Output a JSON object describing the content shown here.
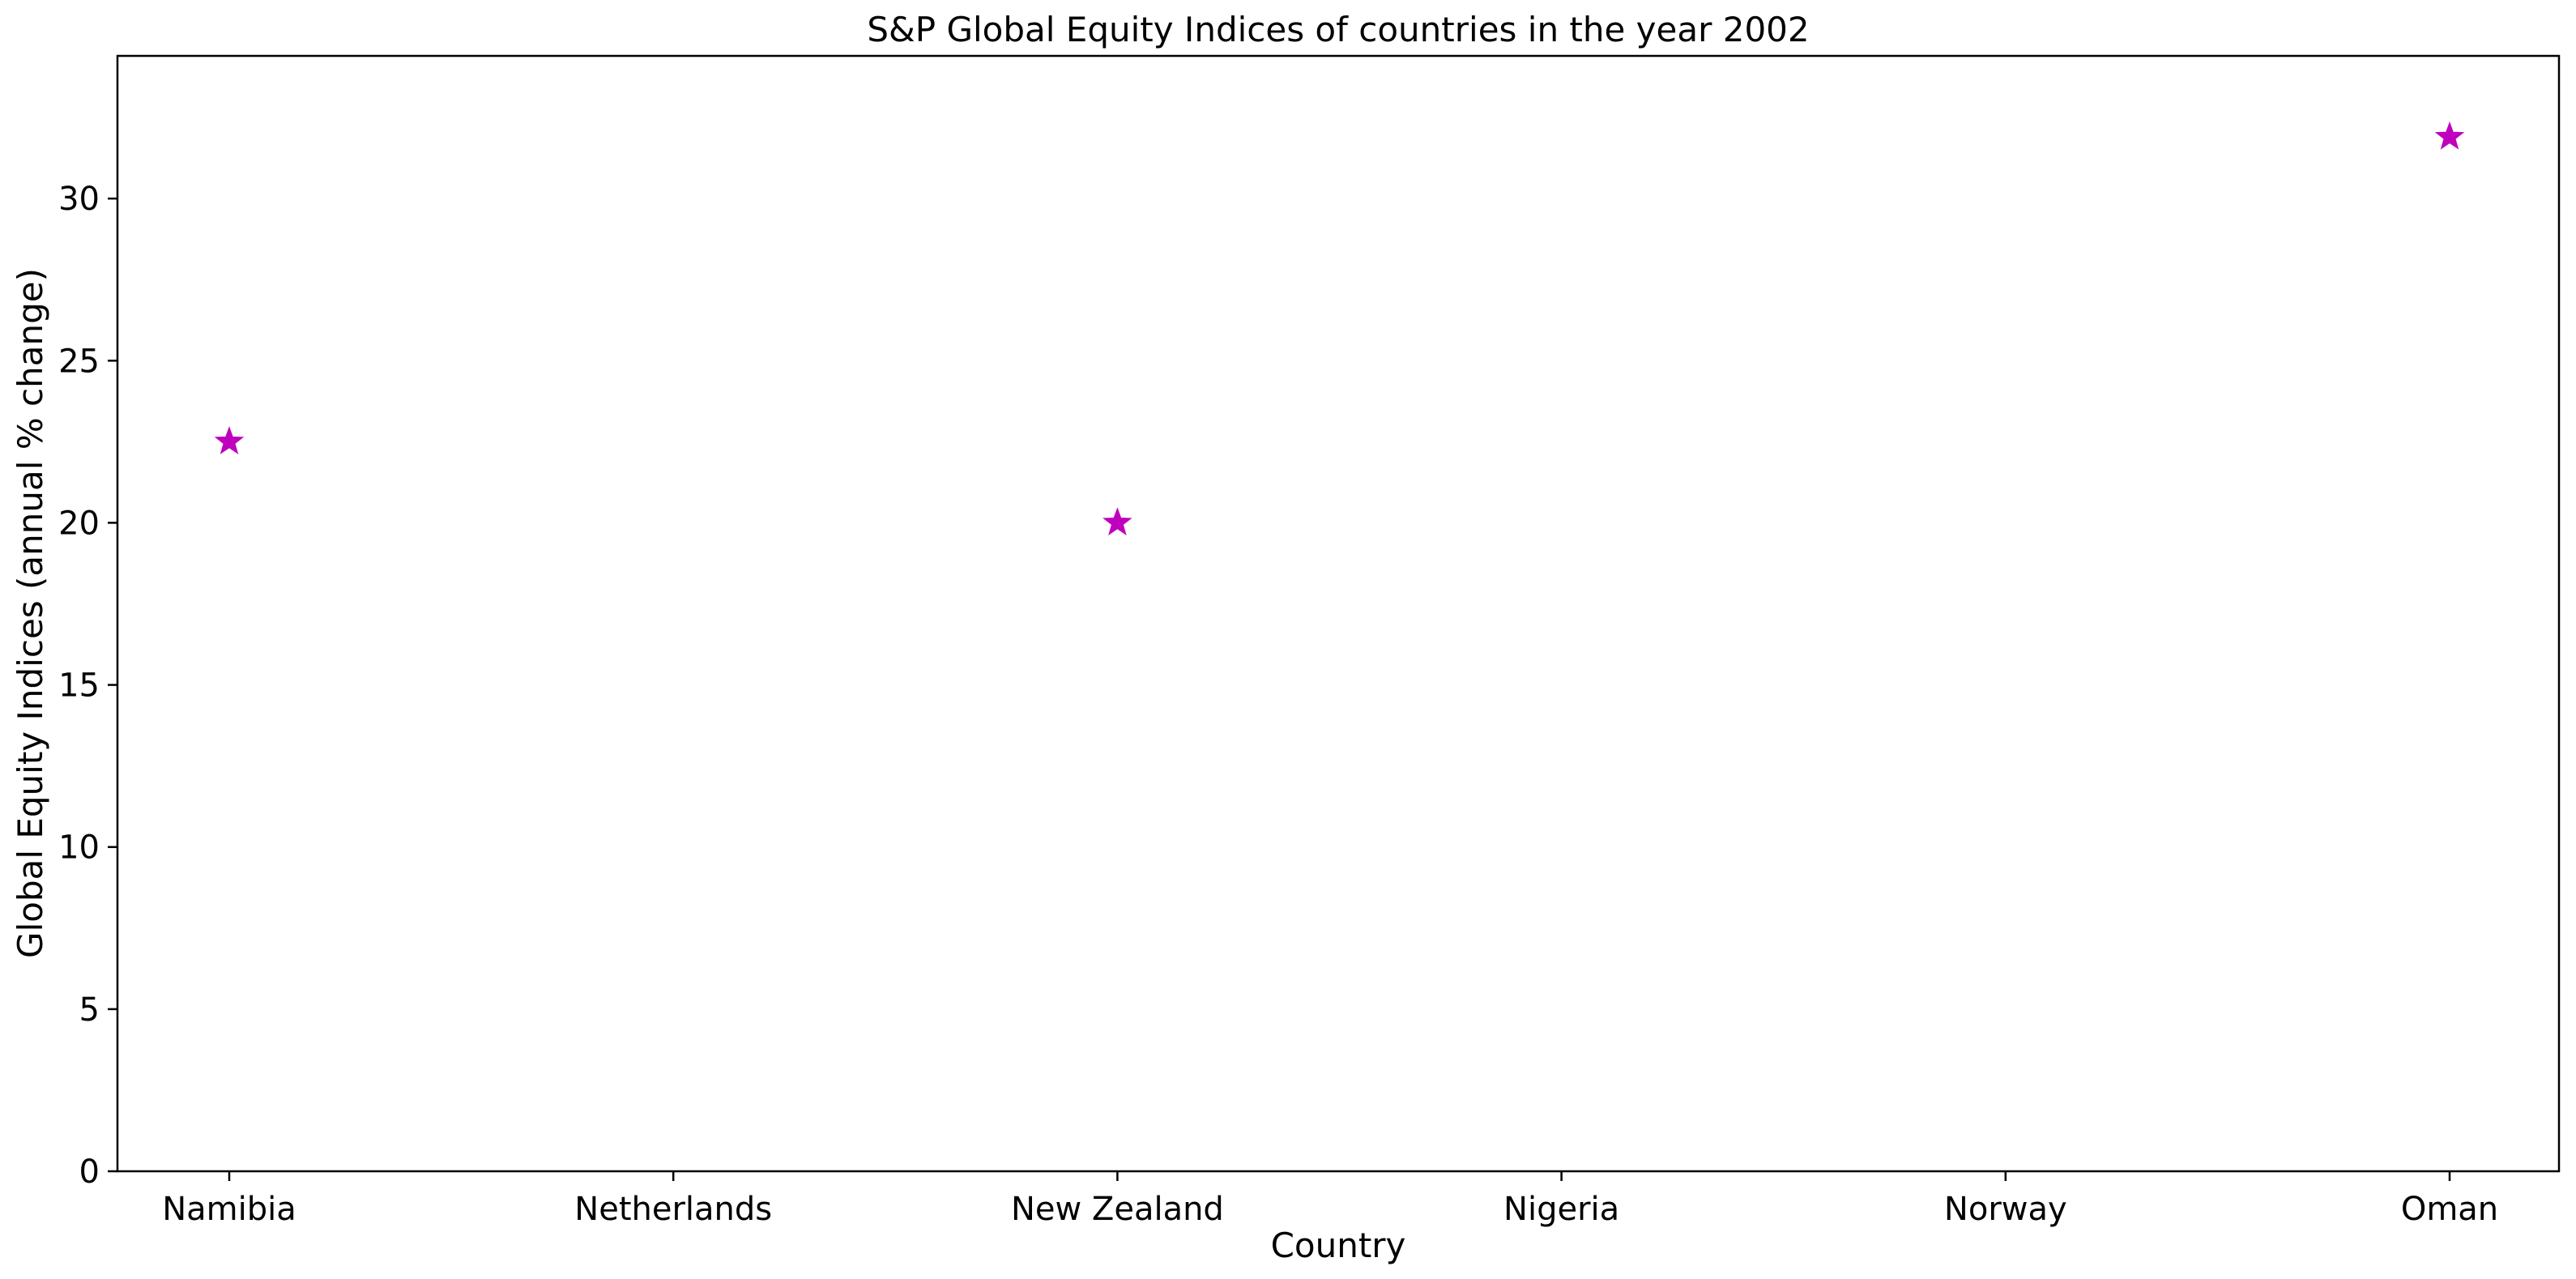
{
  "chart_data": {
    "type": "scatter",
    "title": "S&P Global Equity Indices of countries in the year 2002",
    "xlabel": "Country",
    "ylabel": "Global Equity Indices (annual % change)",
    "categories": [
      "Namibia",
      "Netherlands",
      "New Zealand",
      "Nigeria",
      "Norway",
      "Oman"
    ],
    "series": [
      {
        "marker": "star",
        "color": "#bf00bf",
        "points": [
          {
            "x": "Namibia",
            "y": 22.5
          },
          {
            "x": "New Zealand",
            "y": 20.0
          },
          {
            "x": "Oman",
            "y": 31.9
          }
        ]
      }
    ],
    "ylim": [
      0,
      34.4
    ],
    "yticks": [
      0,
      5,
      10,
      15,
      20,
      25,
      30
    ],
    "grid": false,
    "legend": "none"
  }
}
